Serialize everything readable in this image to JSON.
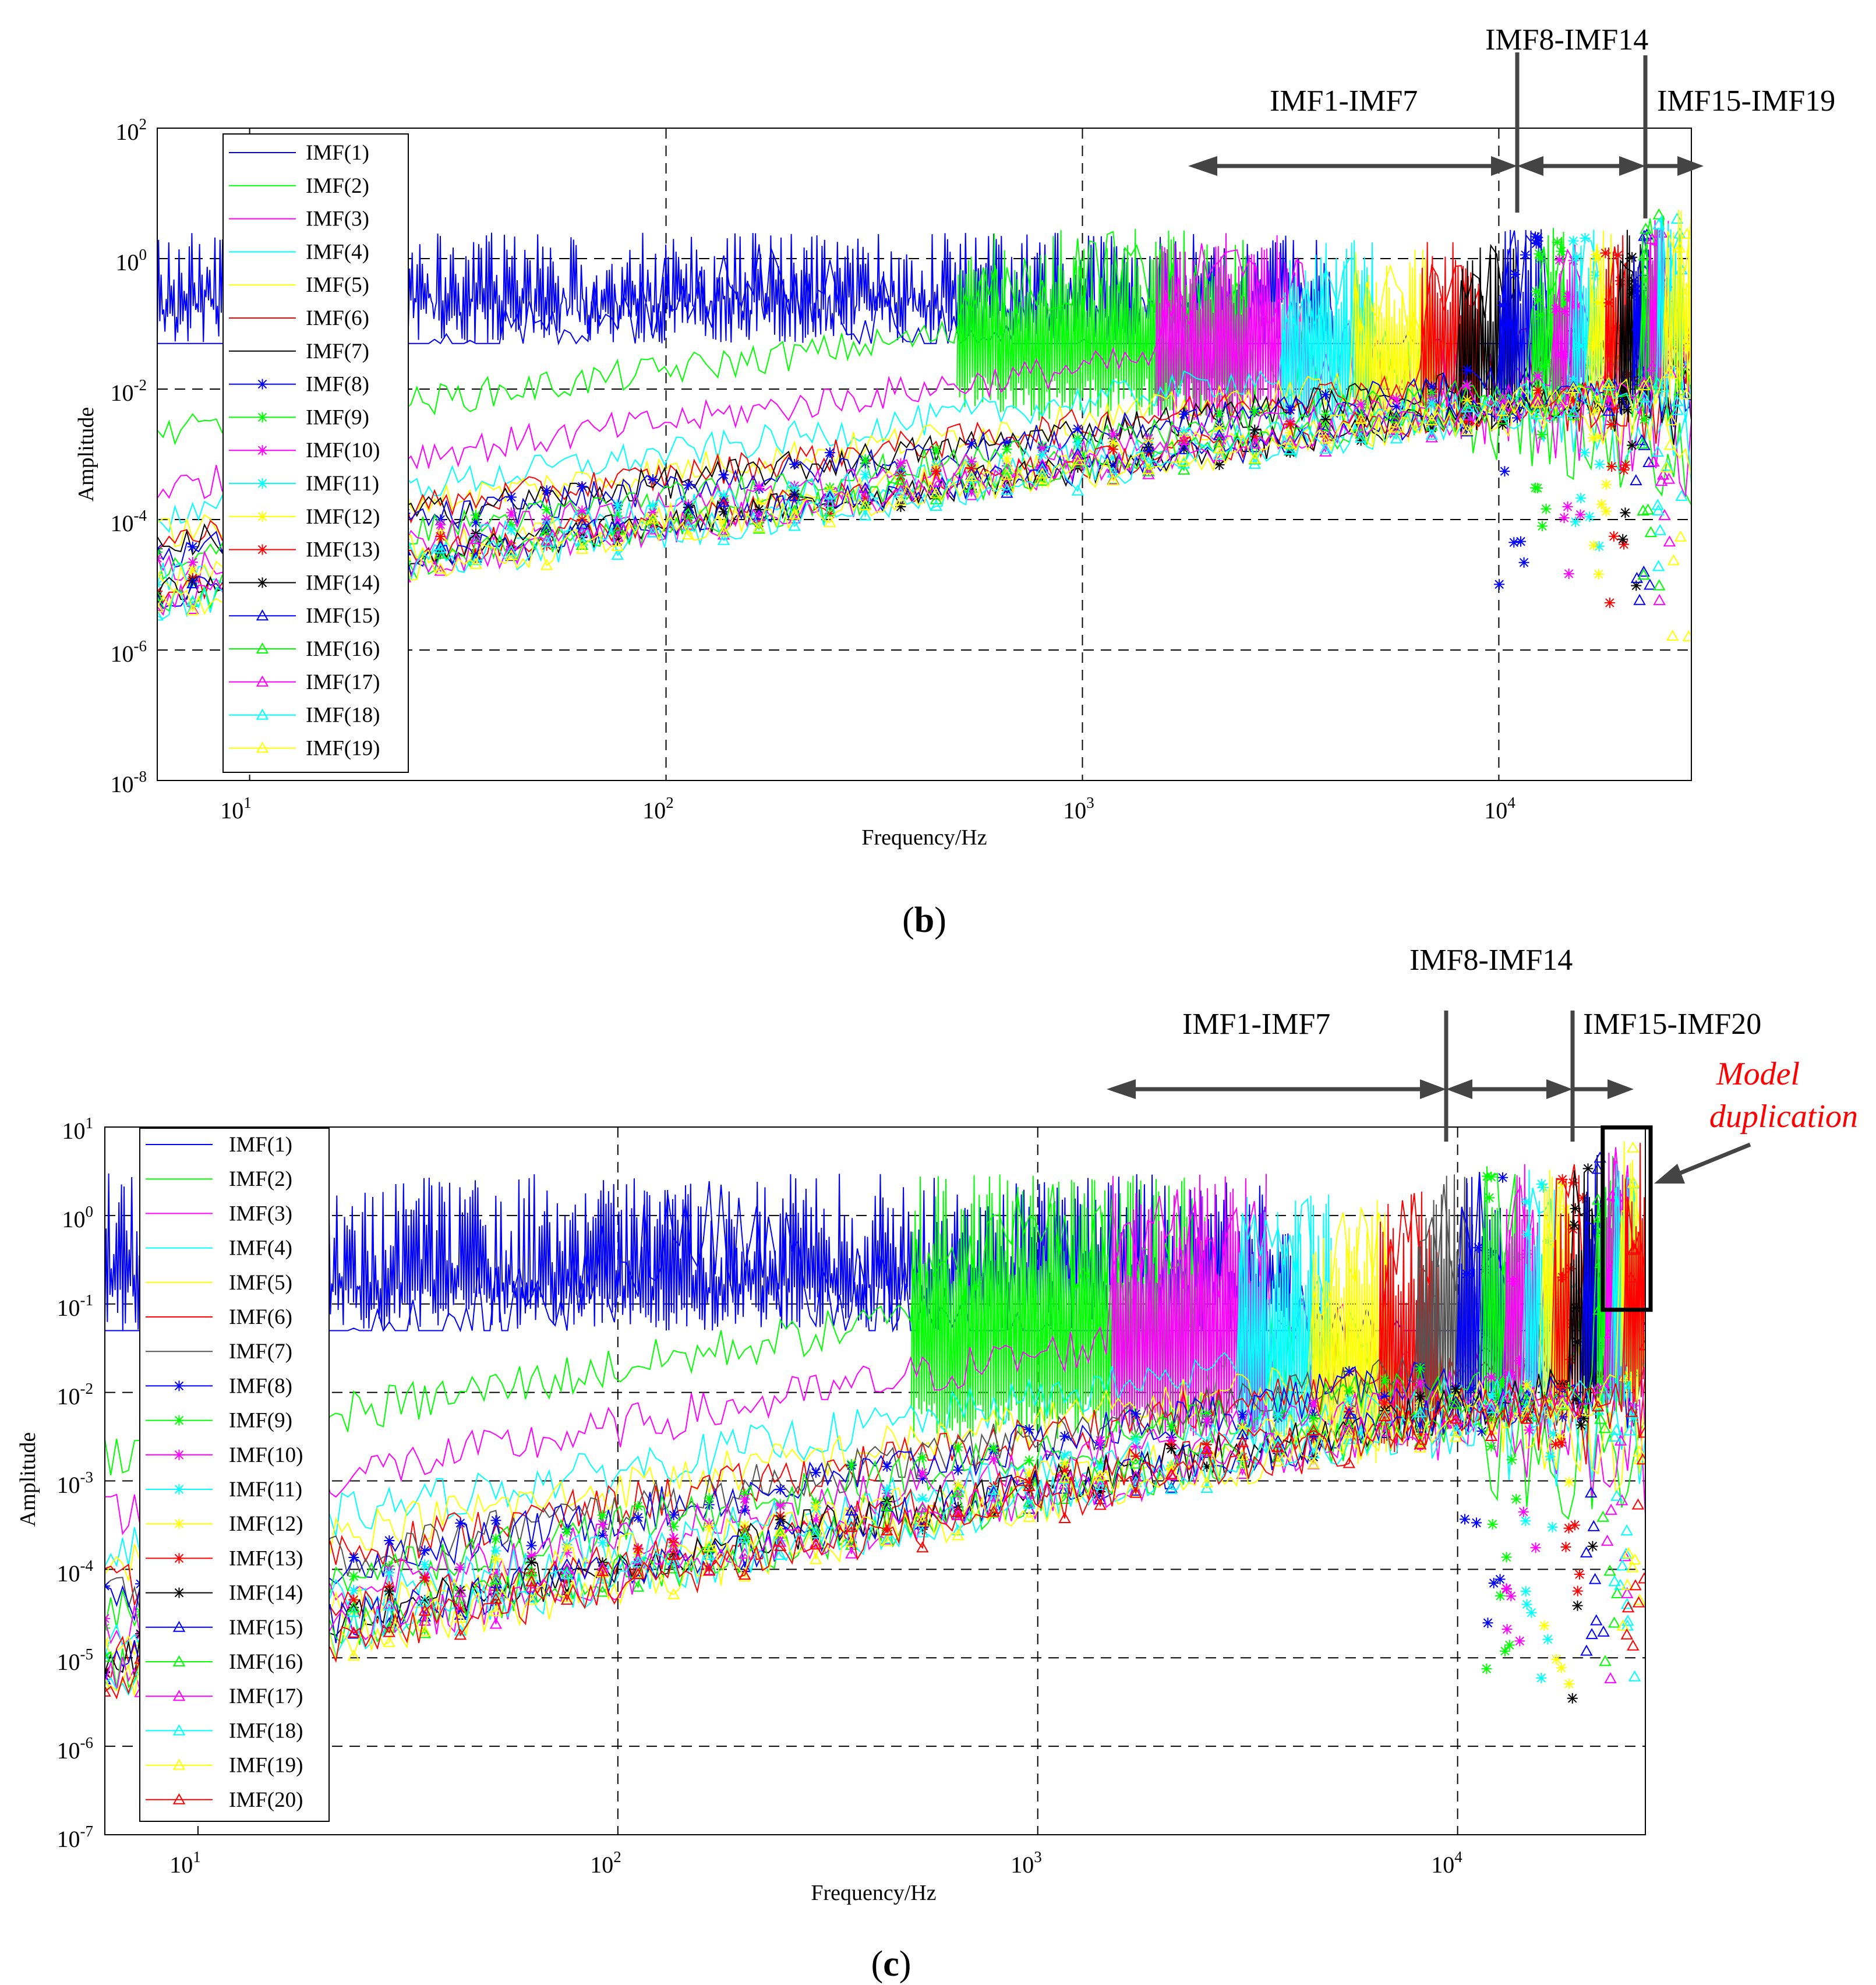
{
  "colors": {
    "blue": "#0000ff",
    "green": "#00ff00",
    "magenta": "#ff00ff",
    "cyan": "#00ffff",
    "yellow": "#ffff00",
    "red": "#ff0000",
    "black": "#000000",
    "gray": "#555555",
    "arrow": "#444444",
    "annotation_red": "#ff0000"
  },
  "panels": {
    "b": {
      "label_letter": "b",
      "paren_open": "(",
      "paren_close": ")",
      "xlabel": "Frequency/Hz",
      "ylabel": "Amplitude",
      "y_tick_labels": [
        {
          "base": "10",
          "exp": "2"
        },
        {
          "base": "10",
          "exp": "0"
        },
        {
          "base": "10",
          "exp": "-2"
        },
        {
          "base": "10",
          "exp": "-4"
        },
        {
          "base": "10",
          "exp": "-6"
        },
        {
          "base": "10",
          "exp": "-8"
        }
      ],
      "x_tick_labels": [
        {
          "base": "10",
          "exp": "1"
        },
        {
          "base": "10",
          "exp": "2"
        },
        {
          "base": "10",
          "exp": "3"
        },
        {
          "base": "10",
          "exp": "4"
        }
      ],
      "ranges": {
        "imf1_7": "IMF1-IMF7",
        "imf8_14": "IMF8-IMF14",
        "imf15_end": "IMF15-IMF19"
      },
      "legend": [
        "IMF(1)",
        "IMF(2)",
        "IMF(3)",
        "IMF(4)",
        "IMF(5)",
        "IMF(6)",
        "IMF(7)",
        "IMF(8)",
        "IMF(9)",
        "IMF(10)",
        "IMF(11)",
        "IMF(12)",
        "IMF(13)",
        "IMF(14)",
        "IMF(15)",
        "IMF(16)",
        "IMF(17)",
        "IMF(18)",
        "IMF(19)"
      ]
    },
    "c": {
      "label_letter": "c",
      "paren_open": "(",
      "paren_close": ")",
      "xlabel": "Frequency/Hz",
      "ylabel": "Amplitude",
      "y_tick_labels": [
        {
          "base": "10",
          "exp": "1"
        },
        {
          "base": "10",
          "exp": "0"
        },
        {
          "base": "10",
          "exp": "-1"
        },
        {
          "base": "10",
          "exp": "-2"
        },
        {
          "base": "10",
          "exp": "-3"
        },
        {
          "base": "10",
          "exp": "-4"
        },
        {
          "base": "10",
          "exp": "-5"
        },
        {
          "base": "10",
          "exp": "-6"
        },
        {
          "base": "10",
          "exp": "-7"
        }
      ],
      "x_tick_labels": [
        {
          "base": "10",
          "exp": "1"
        },
        {
          "base": "10",
          "exp": "2"
        },
        {
          "base": "10",
          "exp": "3"
        },
        {
          "base": "10",
          "exp": "4"
        }
      ],
      "ranges": {
        "imf1_7": "IMF1-IMF7",
        "imf8_14": "IMF8-IMF14",
        "imf15_end": "IMF15-IMF20"
      },
      "annotation_line1": "Model",
      "annotation_line2": "duplication",
      "legend": [
        "IMF(1)",
        "IMF(2)",
        "IMF(3)",
        "IMF(4)",
        "IMF(5)",
        "IMF(6)",
        "IMF(7)",
        "IMF(8)",
        "IMF(9)",
        "IMF(10)",
        "IMF(11)",
        "IMF(12)",
        "IMF(13)",
        "IMF(14)",
        "IMF(15)",
        "IMF(16)",
        "IMF(17)",
        "IMF(18)",
        "IMF(19)",
        "IMF(20)"
      ]
    }
  },
  "chart_data": [
    {
      "type": "line",
      "panel": "b",
      "title": "",
      "xlabel": "Frequency/Hz",
      "ylabel": "Amplitude",
      "xscale": "log",
      "yscale": "log",
      "xlim": [
        6,
        29000
      ],
      "ylim": [
        1e-08,
        100
      ],
      "grid": "dashed at decades",
      "legend_position": "upper-left",
      "series": [
        {
          "name": "IMF(1)",
          "color": "#0000ff",
          "marker": "none",
          "band_hz": [
            6,
            4000
          ],
          "peak": 2.5,
          "floor": 0.05,
          "start_level": 0.35
        },
        {
          "name": "IMF(2)",
          "color": "#00ff00",
          "marker": "none",
          "band_hz": [
            500,
            2500
          ],
          "peak": 3,
          "floor": 1e-05,
          "start_level": 0.002
        },
        {
          "name": "IMF(3)",
          "color": "#ff00ff",
          "marker": "none",
          "band_hz": [
            1500,
            3500
          ],
          "peak": 2.5,
          "floor": 1e-05,
          "start_level": 0.0003
        },
        {
          "name": "IMF(4)",
          "color": "#00ffff",
          "marker": "none",
          "band_hz": [
            3000,
            5000
          ],
          "peak": 2,
          "floor": 1e-05,
          "start_level": 0.0001
        },
        {
          "name": "IMF(5)",
          "color": "#ffff00",
          "marker": "none",
          "band_hz": [
            4500,
            7000
          ],
          "peak": 1.5,
          "floor": 1e-05,
          "start_level": 6e-05
        },
        {
          "name": "IMF(6)",
          "color": "#ff0000",
          "marker": "none",
          "band_hz": [
            6500,
            9000
          ],
          "peak": 2,
          "floor": 1e-05,
          "start_level": 5e-05
        },
        {
          "name": "IMF(7)",
          "color": "#000000",
          "marker": "none",
          "band_hz": [
            8000,
            11000
          ],
          "peak": 2,
          "floor": 1e-05,
          "start_level": 4e-05
        },
        {
          "name": "IMF(8)",
          "color": "#0000ff",
          "marker": "*",
          "band_hz": [
            10000,
            13000
          ],
          "peak": 3,
          "floor": 1e-06,
          "start_level": 3e-05
        },
        {
          "name": "IMF(9)",
          "color": "#00ff00",
          "marker": "*",
          "band_hz": [
            12000,
            14500
          ],
          "peak": 3,
          "floor": 1e-06,
          "start_level": 2e-05
        },
        {
          "name": "IMF(10)",
          "color": "#ff00ff",
          "marker": "*",
          "band_hz": [
            13500,
            16000
          ],
          "peak": 3,
          "floor": 1e-06,
          "start_level": 1.5e-05
        },
        {
          "name": "IMF(11)",
          "color": "#00ffff",
          "marker": "*",
          "band_hz": [
            15000,
            17500
          ],
          "peak": 3,
          "floor": 1e-06,
          "start_level": 1.2e-05
        },
        {
          "name": "IMF(12)",
          "color": "#ffff00",
          "marker": "*",
          "band_hz": [
            16500,
            19000
          ],
          "peak": 3,
          "floor": 1e-06,
          "start_level": 1e-05
        },
        {
          "name": "IMF(13)",
          "color": "#ff0000",
          "marker": "*",
          "band_hz": [
            18000,
            20500
          ],
          "peak": 3,
          "floor": 1e-06,
          "start_level": 9e-06
        },
        {
          "name": "IMF(14)",
          "color": "#000000",
          "marker": "*",
          "band_hz": [
            19500,
            22000
          ],
          "peak": 3,
          "floor": 1e-06,
          "start_level": 8e-06
        },
        {
          "name": "IMF(15)",
          "color": "#0000ff",
          "marker": "triangle",
          "band_hz": [
            21000,
            23500
          ],
          "peak": 4,
          "floor": 1e-06,
          "start_level": 7e-06
        },
        {
          "name": "IMF(16)",
          "color": "#00ff00",
          "marker": "triangle",
          "band_hz": [
            22000,
            25000
          ],
          "peak": 5,
          "floor": 1e-06,
          "start_level": 6e-06
        },
        {
          "name": "IMF(17)",
          "color": "#ff00ff",
          "marker": "triangle",
          "band_hz": [
            23000,
            26000
          ],
          "peak": 5,
          "floor": 1e-06,
          "start_level": 6e-06
        },
        {
          "name": "IMF(18)",
          "color": "#00ffff",
          "marker": "triangle",
          "band_hz": [
            24000,
            27500
          ],
          "peak": 5,
          "floor": 1e-06,
          "start_level": 5e-06
        },
        {
          "name": "IMF(19)",
          "color": "#ffff00",
          "marker": "triangle",
          "band_hz": [
            25000,
            29000
          ],
          "peak": 6,
          "floor": 2e-07,
          "start_level": 5e-06
        }
      ]
    },
    {
      "type": "line",
      "panel": "c",
      "title": "",
      "xlabel": "Frequency/Hz",
      "ylabel": "Amplitude",
      "xscale": "log",
      "yscale": "log",
      "xlim": [
        6,
        28000
      ],
      "ylim": [
        1e-07,
        10
      ],
      "grid": "dashed at decades",
      "legend_position": "upper-left",
      "series": [
        {
          "name": "IMF(1)",
          "color": "#0000ff",
          "marker": "none",
          "band_hz": [
            6,
            4000
          ],
          "peak": 3,
          "floor": 0.05,
          "start_level": 0.4
        },
        {
          "name": "IMF(2)",
          "color": "#00ff00",
          "marker": "none",
          "band_hz": [
            500,
            2500
          ],
          "peak": 3,
          "floor": 1e-05,
          "start_level": 0.002
        },
        {
          "name": "IMF(3)",
          "color": "#ff00ff",
          "marker": "none",
          "band_hz": [
            1500,
            3500
          ],
          "peak": 3,
          "floor": 1e-05,
          "start_level": 0.0004
        },
        {
          "name": "IMF(4)",
          "color": "#00ffff",
          "marker": "none",
          "band_hz": [
            3000,
            5000
          ],
          "peak": 2,
          "floor": 1e-05,
          "start_level": 0.00015
        },
        {
          "name": "IMF(5)",
          "color": "#ffff00",
          "marker": "none",
          "band_hz": [
            4500,
            7000
          ],
          "peak": 1.5,
          "floor": 1e-05,
          "start_level": 0.0001
        },
        {
          "name": "IMF(6)",
          "color": "#ff0000",
          "marker": "none",
          "band_hz": [
            6500,
            9000
          ],
          "peak": 2,
          "floor": 1e-05,
          "start_level": 6e-05
        },
        {
          "name": "IMF(7)",
          "color": "#555555",
          "marker": "none",
          "band_hz": [
            8000,
            11000
          ],
          "peak": 3,
          "floor": 1e-05,
          "start_level": 5e-05
        },
        {
          "name": "IMF(8)",
          "color": "#0000ff",
          "marker": "*",
          "band_hz": [
            10000,
            13000
          ],
          "peak": 4,
          "floor": 1e-06,
          "start_level": 4e-05
        },
        {
          "name": "IMF(9)",
          "color": "#00ff00",
          "marker": "*",
          "band_hz": [
            11500,
            14000
          ],
          "peak": 4,
          "floor": 1e-06,
          "start_level": 3e-05
        },
        {
          "name": "IMF(10)",
          "color": "#ff00ff",
          "marker": "*",
          "band_hz": [
            13000,
            15500
          ],
          "peak": 4,
          "floor": 1e-06,
          "start_level": 2e-05
        },
        {
          "name": "IMF(11)",
          "color": "#00ffff",
          "marker": "*",
          "band_hz": [
            14500,
            17000
          ],
          "peak": 4,
          "floor": 1e-06,
          "start_level": 1.5e-05
        },
        {
          "name": "IMF(12)",
          "color": "#ffff00",
          "marker": "*",
          "band_hz": [
            16000,
            18500
          ],
          "peak": 4,
          "floor": 1e-06,
          "start_level": 1.2e-05
        },
        {
          "name": "IMF(13)",
          "color": "#ff0000",
          "marker": "*",
          "band_hz": [
            17000,
            20000
          ],
          "peak": 4,
          "floor": 1e-06,
          "start_level": 1e-05
        },
        {
          "name": "IMF(14)",
          "color": "#000000",
          "marker": "*",
          "band_hz": [
            18500,
            21500
          ],
          "peak": 5,
          "floor": 4e-07,
          "start_level": 9e-06
        },
        {
          "name": "IMF(15)",
          "color": "#0000ff",
          "marker": "triangle",
          "band_hz": [
            20000,
            23000
          ],
          "peak": 5,
          "floor": 1e-06,
          "start_level": 8e-06
        },
        {
          "name": "IMF(16)",
          "color": "#00ff00",
          "marker": "triangle",
          "band_hz": [
            21500,
            24500
          ],
          "peak": 5,
          "floor": 1e-06,
          "start_level": 7e-06
        },
        {
          "name": "IMF(17)",
          "color": "#ff00ff",
          "marker": "triangle",
          "band_hz": [
            22500,
            25500
          ],
          "peak": 6,
          "floor": 1e-06,
          "start_level": 6e-06
        },
        {
          "name": "IMF(18)",
          "color": "#00ffff",
          "marker": "triangle",
          "band_hz": [
            23500,
            26500
          ],
          "peak": 6,
          "floor": 1e-06,
          "start_level": 6e-06
        },
        {
          "name": "IMF(19)",
          "color": "#ffff00",
          "marker": "triangle",
          "band_hz": [
            24500,
            27500
          ],
          "peak": 7,
          "floor": 1e-06,
          "start_level": 5e-06
        },
        {
          "name": "IMF(20)",
          "color": "#ff0000",
          "marker": "triangle",
          "band_hz": [
            25000,
            28000
          ],
          "peak": 7,
          "floor": 1.5e-07,
          "start_level": 5e-06
        }
      ]
    }
  ]
}
